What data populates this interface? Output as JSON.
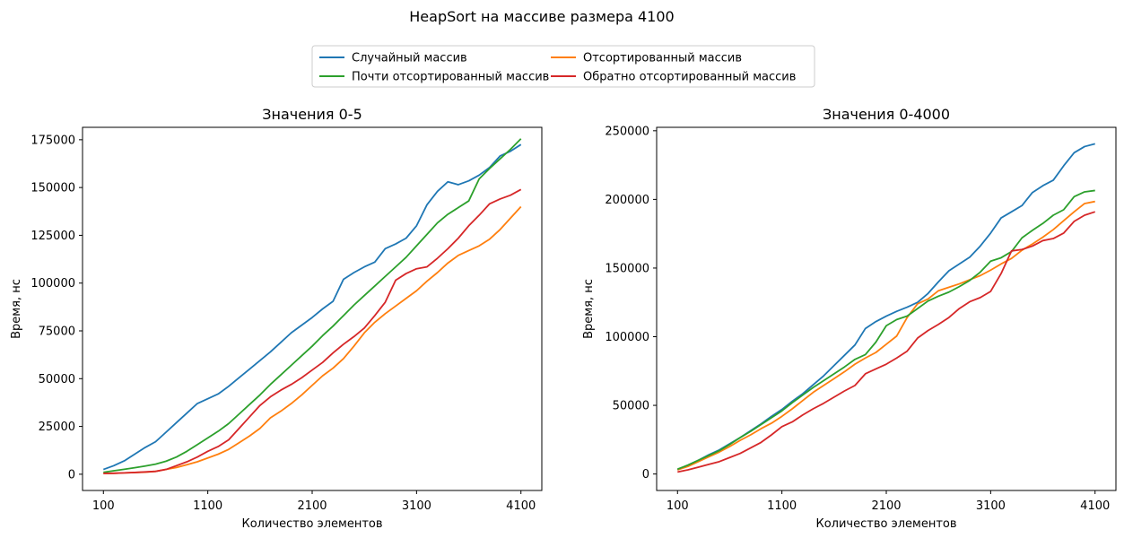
{
  "figure": {
    "suptitle": "HeapSort на массиве размера 4100"
  },
  "legend": {
    "placement": "top-center",
    "columns": 2,
    "entries": [
      {
        "label": "Случайный массив",
        "color": "#1f77b4"
      },
      {
        "label": "Отсортированный массив",
        "color": "#ff7f0e"
      },
      {
        "label": "Почти отсортированный массив",
        "color": "#2ca02c"
      },
      {
        "label": "Обратно отсортированный массив",
        "color": "#d62728"
      }
    ]
  },
  "chart_data": [
    {
      "type": "line",
      "title": "Значения 0-5",
      "xlabel": "Количество элементов",
      "ylabel": "Время, нс",
      "xlim": [
        100,
        4100
      ],
      "ylim": [
        0,
        175000
      ],
      "xticks": [
        100,
        1100,
        2100,
        3100,
        4100
      ],
      "xtick_labels": [
        "100",
        "1100",
        "2100",
        "3100",
        "4100"
      ],
      "yticks": [
        0,
        25000,
        50000,
        75000,
        100000,
        125000,
        150000,
        175000
      ],
      "ytick_labels": [
        "0",
        "25000",
        "50000",
        "75000",
        "100000",
        "125000",
        "150000",
        "175000"
      ],
      "grid": false,
      "x": [
        100,
        200,
        300,
        400,
        500,
        600,
        700,
        800,
        900,
        1000,
        1100,
        1200,
        1300,
        1400,
        1500,
        1600,
        1700,
        1800,
        1900,
        2000,
        2100,
        2200,
        2300,
        2400,
        2500,
        2600,
        2700,
        2800,
        2900,
        3000,
        3100,
        3200,
        3300,
        3400,
        3500,
        3600,
        3700,
        3800,
        3900,
        4000,
        4100
      ],
      "series": [
        {
          "name": "Случайный массив",
          "color": "#1f77b4",
          "values": [
            2500,
            4500,
            7000,
            10500,
            14000,
            17000,
            22000,
            27000,
            32000,
            37000,
            39500,
            42000,
            46000,
            50500,
            55000,
            59500,
            64000,
            69000,
            74000,
            78000,
            82000,
            86500,
            90500,
            102000,
            105500,
            108500,
            111000,
            118000,
            120500,
            123500,
            130000,
            141000,
            148000,
            153000,
            151500,
            153500,
            156500,
            160500,
            166500,
            169000,
            172500
          ]
        },
        {
          "name": "Отсортированный массив",
          "color": "#ff7f0e",
          "values": [
            400,
            500,
            700,
            900,
            1100,
            1500,
            2500,
            3500,
            5000,
            6500,
            8500,
            10500,
            13000,
            16500,
            20000,
            24000,
            29500,
            33000,
            37000,
            41500,
            46500,
            51500,
            55500,
            60500,
            67000,
            74000,
            79500,
            84000,
            88000,
            92000,
            96000,
            101000,
            105500,
            110500,
            114500,
            117000,
            119500,
            123000,
            128000,
            134000,
            140000
          ]
        },
        {
          "name": "Почти отсортированный массив",
          "color": "#2ca02c",
          "values": [
            1000,
            1800,
            2600,
            3400,
            4300,
            5300,
            6800,
            9000,
            12000,
            15500,
            19000,
            22500,
            26500,
            31500,
            36500,
            41500,
            47000,
            52000,
            57000,
            62000,
            67000,
            72500,
            77500,
            83000,
            88500,
            93500,
            98500,
            103500,
            108500,
            113500,
            119500,
            125500,
            131500,
            136000,
            139500,
            143000,
            154500,
            160000,
            165000,
            170000,
            175500
          ]
        },
        {
          "name": "Обратно отсортированный массив",
          "color": "#d62728",
          "values": [
            400,
            500,
            700,
            900,
            1200,
            1500,
            2500,
            4500,
            6500,
            9000,
            12000,
            14500,
            18000,
            24000,
            30000,
            36000,
            40500,
            44000,
            47000,
            50500,
            54500,
            58500,
            63500,
            68000,
            72000,
            76500,
            83000,
            90000,
            101500,
            105000,
            107500,
            108500,
            113000,
            118000,
            123500,
            130000,
            135500,
            141500,
            144000,
            146000,
            149000
          ]
        }
      ]
    },
    {
      "type": "line",
      "title": "Значения 0-4000",
      "xlabel": "Количество элементов",
      "ylabel": "Время, нс",
      "xlim": [
        100,
        4100
      ],
      "ylim": [
        0,
        250000
      ],
      "xticks": [
        100,
        1100,
        2100,
        3100,
        4100
      ],
      "xtick_labels": [
        "100",
        "1100",
        "2100",
        "3100",
        "4100"
      ],
      "yticks": [
        0,
        50000,
        100000,
        150000,
        200000,
        250000
      ],
      "ytick_labels": [
        "0",
        "50000",
        "100000",
        "150000",
        "200000",
        "250000"
      ],
      "grid": false,
      "x": [
        100,
        200,
        300,
        400,
        500,
        600,
        700,
        800,
        900,
        1000,
        1100,
        1200,
        1300,
        1400,
        1500,
        1600,
        1700,
        1800,
        1900,
        2000,
        2100,
        2200,
        2300,
        2400,
        2500,
        2600,
        2700,
        2800,
        2900,
        3000,
        3100,
        3200,
        3300,
        3400,
        3500,
        3600,
        3700,
        3800,
        3900,
        4000,
        4100
      ],
      "series": [
        {
          "name": "Случайный массив",
          "color": "#1f77b4",
          "values": [
            3000,
            6500,
            10000,
            14000,
            17500,
            22000,
            26500,
            31500,
            36500,
            42000,
            47000,
            53000,
            58500,
            65000,
            71500,
            79000,
            86500,
            94000,
            106000,
            111000,
            115000,
            118500,
            121500,
            125000,
            131500,
            140000,
            148000,
            153000,
            158000,
            166000,
            175500,
            186500,
            191000,
            195500,
            205000,
            210000,
            214000,
            224500,
            234000,
            238500,
            240500
          ]
        },
        {
          "name": "Отсортированный массив",
          "color": "#ff7f0e",
          "values": [
            3000,
            5500,
            9000,
            12500,
            16000,
            20000,
            24500,
            28500,
            33000,
            37000,
            42000,
            47500,
            53500,
            59500,
            64500,
            69500,
            74500,
            80000,
            84500,
            88500,
            94500,
            100500,
            114000,
            124000,
            127500,
            133500,
            136000,
            138500,
            141500,
            144500,
            148500,
            153000,
            157000,
            163000,
            167500,
            172500,
            178000,
            184500,
            191000,
            197000,
            198500
          ]
        },
        {
          "name": "Почти отсортированный массив",
          "color": "#2ca02c",
          "values": [
            3500,
            6500,
            10000,
            13500,
            17000,
            21500,
            26500,
            31000,
            36000,
            41000,
            46000,
            52000,
            57500,
            63000,
            68000,
            73000,
            78000,
            83500,
            87000,
            96000,
            108000,
            112500,
            115000,
            120500,
            126000,
            129500,
            132500,
            136500,
            141000,
            147000,
            155000,
            157500,
            162000,
            172000,
            177500,
            182500,
            188500,
            192500,
            202000,
            205500,
            206500
          ]
        },
        {
          "name": "Обратно отсортированный массив",
          "color": "#d62728",
          "values": [
            1500,
            3000,
            5000,
            7000,
            9000,
            12000,
            15000,
            19000,
            23000,
            28500,
            34500,
            38000,
            43000,
            47500,
            51500,
            56000,
            60500,
            64500,
            73000,
            76500,
            80000,
            84500,
            89500,
            99000,
            104500,
            109000,
            114000,
            120500,
            125500,
            128500,
            133000,
            146000,
            162500,
            163500,
            166000,
            170000,
            171500,
            175500,
            184000,
            188500,
            191000
          ]
        }
      ]
    }
  ]
}
